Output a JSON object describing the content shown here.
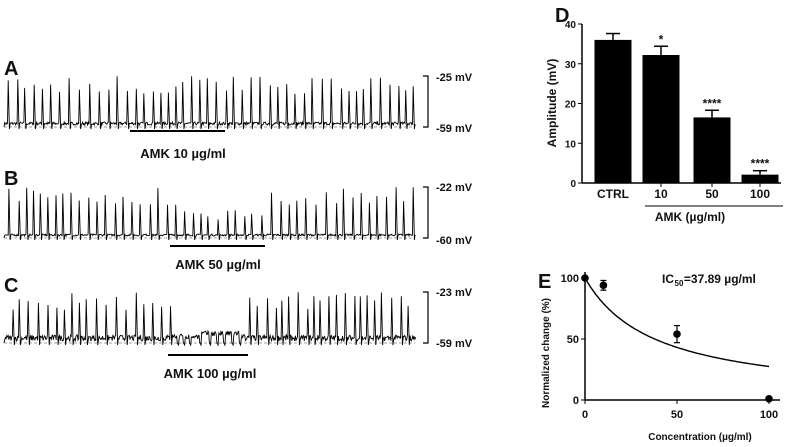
{
  "panels": {
    "A": {
      "letter": "A",
      "top_label": "-25 mV",
      "bottom_label": "-59 mV",
      "drug_label": "AMK 10 µg/ml"
    },
    "B": {
      "letter": "B",
      "top_label": "-22 mV",
      "bottom_label": "-60 mV",
      "drug_label": "AMK 50 µg/ml"
    },
    "C": {
      "letter": "C",
      "top_label": "-23 mV",
      "bottom_label": "-59 mV",
      "drug_label": "AMK 100 µg/ml"
    }
  },
  "chart_data": [
    {
      "panel": "D",
      "type": "bar",
      "categories": [
        "CTRL",
        "10",
        "50",
        "100"
      ],
      "values": [
        36,
        32.2,
        16.5,
        2.1
      ],
      "errors": [
        1.6,
        2.2,
        1.8,
        1.0
      ],
      "significance": [
        "",
        "*",
        "****",
        "****"
      ],
      "ylabel": "Amplitude (mV)",
      "xlabel": "AMK (µg/ml)",
      "ylim": [
        0,
        40
      ],
      "yticks": [
        0,
        10,
        20,
        30,
        40
      ],
      "color": "#000000"
    },
    {
      "panel": "E",
      "type": "scatter",
      "x": [
        0,
        10,
        50,
        100
      ],
      "y": [
        100,
        94,
        54,
        1
      ],
      "errors": [
        0,
        4,
        7,
        0
      ],
      "fit": {
        "model": "100/(1+x/IC50)",
        "IC50": 37.89
      },
      "annotation": "IC50=37.89 µg/ml",
      "annotation_main": "IC",
      "annotation_sub": "50",
      "annotation_rest": "=37.89 µg/ml",
      "xlabel": "Concentration (µg/ml)",
      "ylabel": "Normalized change (%)",
      "xlim": [
        0,
        100
      ],
      "ylim": [
        0,
        100
      ],
      "xticks": [
        0,
        50,
        100
      ],
      "yticks": [
        0,
        50,
        100
      ]
    }
  ]
}
